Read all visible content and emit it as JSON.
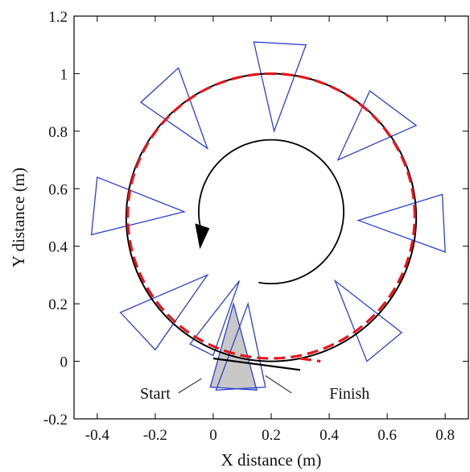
{
  "chart_data": {
    "type": "line",
    "xlabel": "X distance (m)",
    "ylabel": "Y distance (m)",
    "xlim": [
      -0.48,
      0.88
    ],
    "ylim": [
      -0.2,
      1.2
    ],
    "xticks": [
      -0.4,
      -0.2,
      0,
      0.2,
      0.4,
      0.6,
      0.8
    ],
    "xtick_labels": [
      "-0.4",
      "-0.2",
      "0",
      "0.2",
      "0.4",
      "0.6",
      "0.8"
    ],
    "yticks": [
      -0.2,
      0,
      0.2,
      0.4,
      0.6,
      0.8,
      1.0,
      1.2
    ],
    "ytick_labels": [
      "-0.2",
      "0",
      "0.2",
      "0.4",
      "0.6",
      "0.8",
      "1",
      "1.2"
    ],
    "grid": false,
    "series": [
      {
        "style": "solid",
        "color": "#000000",
        "path": {
          "type": "circle",
          "cx": 0.2,
          "cy": 0.5,
          "r": 0.5
        },
        "start_end_segment": [
          [
            0.0,
            0.01
          ],
          [
            0.3,
            -0.03
          ]
        ]
      },
      {
        "style": "dashed",
        "color": "#e8141b",
        "path": {
          "type": "circle",
          "cx": 0.2,
          "cy": 0.505,
          "r": 0.495
        },
        "extra_segment": [
          [
            0.3,
            0.01
          ],
          [
            0.37,
            0.0
          ]
        ]
      }
    ],
    "direction_arrow": {
      "type": "arc",
      "cx": 0.2,
      "cy": 0.52,
      "r": 0.25,
      "arrowhead": "upper-left",
      "color": "#000000"
    },
    "sensor_cones": [
      {
        "tip": [
          0.21,
          0.8
        ],
        "base": [
          [
            0.14,
            1.11
          ],
          [
            0.32,
            1.1
          ]
        ]
      },
      {
        "tip": [
          0.43,
          0.7
        ],
        "base": [
          [
            0.54,
            0.94
          ],
          [
            0.7,
            0.82
          ]
        ]
      },
      {
        "tip": [
          0.5,
          0.49
        ],
        "base": [
          [
            0.79,
            0.58
          ],
          [
            0.8,
            0.38
          ]
        ]
      },
      {
        "tip": [
          0.42,
          0.28
        ],
        "base": [
          [
            0.65,
            0.1
          ],
          [
            0.53,
            0.0
          ]
        ]
      },
      {
        "tip": [
          0.09,
          0.28
        ],
        "base": [
          [
            -0.08,
            0.06
          ],
          [
            0.0,
            0.02
          ]
        ]
      },
      {
        "tip": [
          -0.02,
          0.3
        ],
        "base": [
          [
            -0.32,
            0.17
          ],
          [
            -0.2,
            0.04
          ]
        ]
      },
      {
        "tip": [
          -0.1,
          0.52
        ],
        "base": [
          [
            -0.4,
            0.64
          ],
          [
            -0.42,
            0.44
          ]
        ]
      },
      {
        "tip": [
          -0.02,
          0.74
        ],
        "base": [
          [
            -0.25,
            0.9
          ],
          [
            -0.12,
            1.02
          ]
        ]
      }
    ],
    "shaded_cone": {
      "tip": [
        0.07,
        0.2
      ],
      "base": [
        [
          -0.01,
          -0.09
        ],
        [
          0.15,
          -0.1
        ]
      ],
      "fill": "#c8c8c8"
    },
    "outline_cone": {
      "tip": [
        0.12,
        0.2
      ],
      "base": [
        [
          0.01,
          -0.1
        ],
        [
          0.18,
          -0.09
        ]
      ]
    },
    "annotations": [
      {
        "text": "Start",
        "x": -0.2,
        "y": -0.11,
        "pointer": [
          [
            -0.12,
            -0.11
          ],
          [
            -0.04,
            -0.06
          ]
        ]
      },
      {
        "text": "Finish",
        "x": 0.47,
        "y": -0.11,
        "pointer": [
          [
            0.27,
            -0.11
          ],
          [
            0.18,
            -0.05
          ]
        ]
      }
    ]
  }
}
